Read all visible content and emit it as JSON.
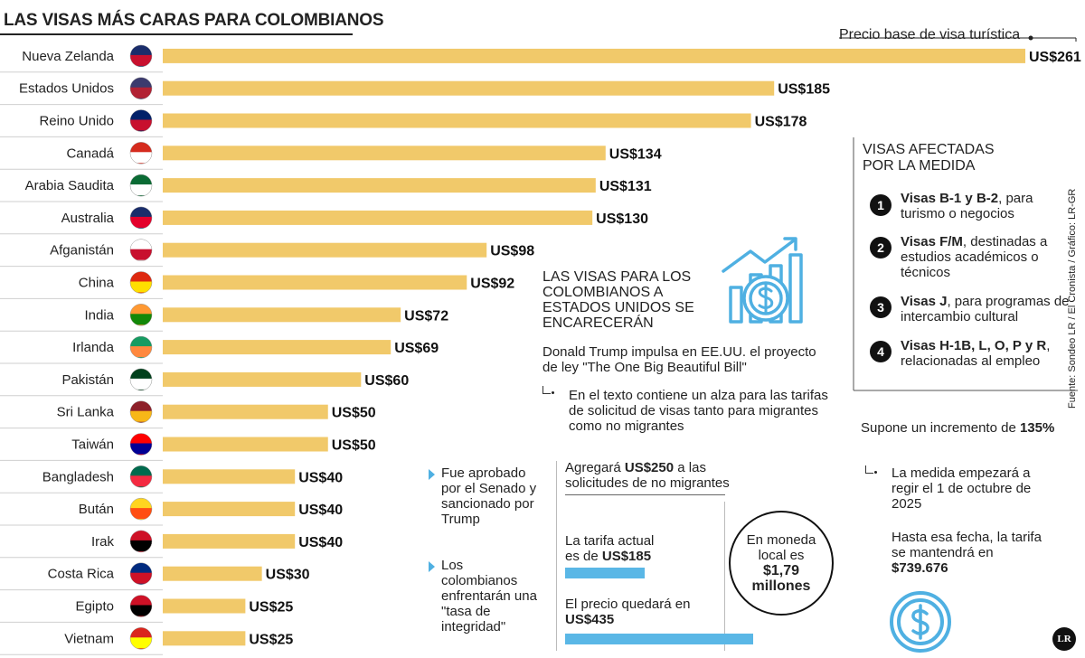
{
  "title": "LAS VISAS MÁS CARAS PARA COLOMBIANOS",
  "chart_data": {
    "type": "bar",
    "orientation": "horizontal",
    "title": "LAS VISAS MÁS CARAS PARA COLOMBIANOS",
    "annotation": "Precio base de visa turística",
    "categories": [
      "Nueva Zelanda",
      "Estados Unidos",
      "Reino Unido",
      "Canadá",
      "Arabia Saudita",
      "Australia",
      "Afganistán",
      "China",
      "India",
      "Irlanda",
      "Pakistán",
      "Sri Lanka",
      "Taiwán",
      "Bangladesh",
      "Bután",
      "Irak",
      "Costa Rica",
      "Egipto",
      "Vietnam"
    ],
    "values": [
      261,
      185,
      178,
      134,
      131,
      130,
      98,
      92,
      72,
      69,
      60,
      50,
      50,
      40,
      40,
      40,
      30,
      25,
      25
    ],
    "value_labels": [
      "US$261",
      "US$185",
      "US$178",
      "US$134",
      "US$131",
      "US$130",
      "US$98",
      "US$92",
      "US$72",
      "US$69",
      "US$60",
      "US$50",
      "US$50",
      "US$40",
      "US$40",
      "US$40",
      "US$30",
      "US$25",
      "US$25"
    ],
    "bar_color": "#f1c96a",
    "xlim": [
      0,
      261
    ]
  },
  "affected": {
    "title_line1": "VISAS AFECTADAS",
    "title_line2": "POR LA MEDIDA",
    "items": [
      {
        "num": "1",
        "bold": "Visas B-1 y B-2",
        "rest": ", para turismo o negocios"
      },
      {
        "num": "2",
        "bold": "Visas F/M",
        "rest": ", destinadas a estudios académicos o técnicos"
      },
      {
        "num": "3",
        "bold": "Visas J",
        "rest": ", para programas de intercambio cultural"
      },
      {
        "num": "4",
        "bold": "Visas H-1B, L, O, P y R",
        "rest": ", relacionadas al empleo"
      }
    ]
  },
  "story": {
    "head1": "LAS VISAS PARA LOS",
    "head2": "COLOMBIANOS A",
    "head3": "ESTADOS UNIDOS SE",
    "head4": "ENCARECERÁN",
    "lead": "Donald Trump impulsa en EE.UU. el proyecto de ley \"The One Big Beautiful Bill\"",
    "detail": "En el texto contiene un alza para las tarifas de solicitud de visas tanto para migrantes como no migrantes",
    "bullet1": "Fue aprobado por el Senado y sancionado por Trump",
    "bullet2": "Los colombianos enfrentarán una \"tasa de integridad\""
  },
  "fees": {
    "add_pre": "Agregará ",
    "add_bold": "US$250",
    "add_post": " a las solicitudes de no migrantes",
    "current_pre": "La tarifa actual es de ",
    "current_bold": "US$185",
    "final_pre": "El precio quedará en ",
    "final_bold": "US$435",
    "bars": {
      "current": 185,
      "final": 435
    },
    "bar_color": "#5ab7e6"
  },
  "local": {
    "line1": "En moneda",
    "line2": "local es",
    "bold1": "$1,79",
    "bold2": "millones"
  },
  "increase": {
    "pre": "Supone un incremento de ",
    "bold": "135%",
    "start": "La medida empezará a regir el 1 de octubre de 2025",
    "until_pre": "Hasta esa fecha, la tarifa se mantendrá en ",
    "until_bold": "$739.676"
  },
  "credit": "Fuente: Sondeo LR / El Cronista / Gráfico: LR-GR",
  "logo": "LR"
}
